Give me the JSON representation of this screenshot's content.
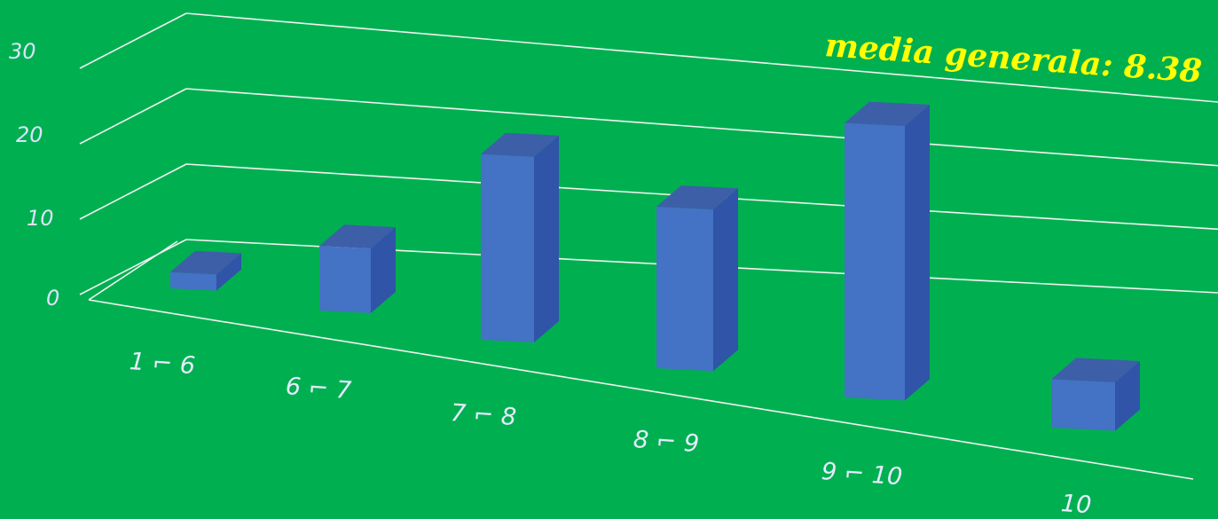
{
  "chart_data": {
    "type": "bar",
    "style": "3d-column",
    "categories": [
      "1 ⌐ 6",
      "6 ⌐ 7",
      "7 ⌐ 8",
      "8 ⌐ 9",
      "9 ⌐ 10",
      "10"
    ],
    "values": [
      2,
      8,
      23,
      20,
      34,
      6
    ],
    "ylim": [
      0,
      30
    ],
    "yticks": [
      "0",
      "10",
      "20",
      "30"
    ],
    "grid": true,
    "annotation": {
      "label": "media generala:",
      "value": "8.38"
    },
    "colors": {
      "background": "#00b050",
      "bar_front": "#4472c4",
      "bar_side": "#2f54a8",
      "bar_top": "#3d5fa8",
      "gridline": "#f2f2f2",
      "tick_text": "#dbe3ff",
      "annotation": "#ffff00"
    }
  }
}
